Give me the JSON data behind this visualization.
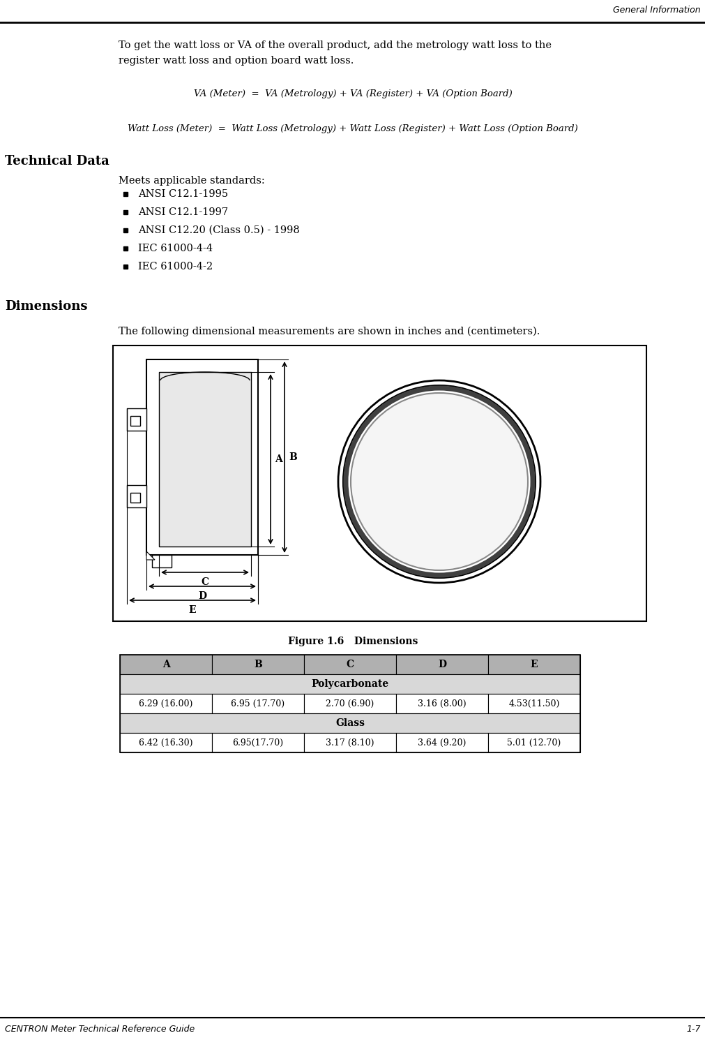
{
  "header_right": "General Information",
  "footer_left": "CENTRON Meter Technical Reference Guide",
  "footer_right": "1-7",
  "intro_line1": "To get the watt loss or VA of the overall product, add the metrology watt loss to the",
  "intro_line2": "register watt loss and option board watt loss.",
  "formula1": "VA (Meter)  =  VA (Metrology) + VA (Register) + VA (Option Board)",
  "formula2": "Watt Loss (Meter)  =  Watt Loss (Metrology) + Watt Loss (Register) + Watt Loss (Option Board)",
  "section_technical": "Technical Data",
  "meets_text": "Meets applicable standards:",
  "standards": [
    "ANSI C12.1-1995",
    "ANSI C12.1-1997",
    "ANSI C12.20 (Class 0.5) - 1998",
    "IEC 61000-4-4",
    "IEC 61000-4-2"
  ],
  "section_dimensions": "Dimensions",
  "dimensions_text": "The following dimensional measurements are shown in inches and (centimeters).",
  "figure_caption": "Figure 1.6   Dimensions",
  "table_headers": [
    "A",
    "B",
    "C",
    "D",
    "E"
  ],
  "table_row1_label": "Polycarbonate",
  "table_row1_values": [
    "6.29 (16.00)",
    "6.95 (17.70)",
    "2.70 (6.90)",
    "3.16 (8.00)",
    "4.53(11.50)"
  ],
  "table_row2_label": "Glass",
  "table_row2_values": [
    "6.42 (16.30)",
    "6.95(17.70)",
    "3.17 (8.10)",
    "3.64 (9.20)",
    "5.01 (12.70)"
  ],
  "bg_color": "#ffffff",
  "text_color": "#000000",
  "table_header_bg": "#b0b0b0",
  "table_label_bg": "#d8d8d8"
}
